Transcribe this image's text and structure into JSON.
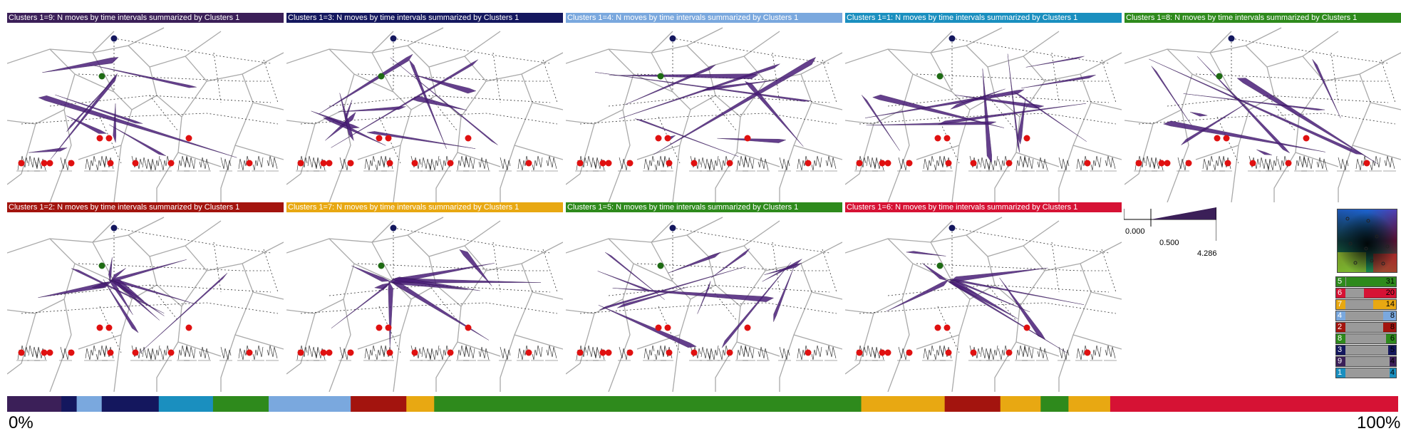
{
  "panels": [
    {
      "title": "Clusters 1=9: N moves by time intervals summarized by Clusters 1",
      "color": "#3b1f58",
      "text_color": "#ffffff"
    },
    {
      "title": "Clusters 1=3: N moves by time intervals summarized by Clusters 1",
      "color": "#14175e",
      "text_color": "#ffffff"
    },
    {
      "title": "Clusters 1=4: N moves by time intervals summarized by Clusters 1",
      "color": "#7aa8de",
      "text_color": "#ffffff"
    },
    {
      "title": "Clusters 1=1: N moves by time intervals summarized by Clusters 1",
      "color": "#1a8fbf",
      "text_color": "#ffffff"
    },
    {
      "title": "Clusters 1=8: N moves by time intervals summarized by Clusters 1",
      "color": "#2e8a1c",
      "text_color": "#ffffff"
    },
    {
      "title": "Clusters 1=2: N moves by time intervals summarized by Clusters 1",
      "color": "#a3140e",
      "text_color": "#ffffff"
    },
    {
      "title": "Clusters 1=7: N moves by time intervals summarized by Clusters 1",
      "color": "#e8a812",
      "text_color": "#ffffff"
    },
    {
      "title": "Clusters 1=5: N moves by time intervals summarized by Clusters 1",
      "color": "#2e8a1c",
      "text_color": "#ffffff"
    },
    {
      "title": "Clusters 1=6: N moves by time intervals summarized by Clusters 1",
      "color": "#d61234",
      "text_color": "#ffffff"
    }
  ],
  "scale_legend": {
    "min": "0.000",
    "mid": "0.500",
    "max": "4.286",
    "color": "#3b1f58"
  },
  "cluster_counts": [
    {
      "id": "5",
      "count": "31",
      "color": "#2e8a1c"
    },
    {
      "id": "6",
      "count": "20",
      "color": "#d61234"
    },
    {
      "id": "7",
      "count": "14",
      "color": "#e8a812"
    },
    {
      "id": "4",
      "count": "8",
      "color": "#7aa8de"
    },
    {
      "id": "2",
      "count": "8",
      "color": "#a3140e"
    },
    {
      "id": "8",
      "count": "6",
      "color": "#2e8a1c"
    },
    {
      "id": "3",
      "count": "5",
      "color": "#14175e"
    },
    {
      "id": "9",
      "count": "4",
      "color": "#3b1f58"
    },
    {
      "id": "1",
      "count": "4",
      "color": "#1a8fbf"
    }
  ],
  "timeline": {
    "start_label": "0%",
    "end_label": "100%",
    "segments": [
      {
        "color": "#3b1f58",
        "share": 0.039
      },
      {
        "color": "#14175e",
        "share": 0.011
      },
      {
        "color": "#7aa8de",
        "share": 0.018
      },
      {
        "color": "#14175e",
        "share": 0.041
      },
      {
        "color": "#1a8fbf",
        "share": 0.039
      },
      {
        "color": "#2e8a1c",
        "share": 0.04
      },
      {
        "color": "#7aa8de",
        "share": 0.059
      },
      {
        "color": "#a3140e",
        "share": 0.04
      },
      {
        "color": "#e8a812",
        "share": 0.02
      },
      {
        "color": "#2e8a1c",
        "share": 0.307
      },
      {
        "color": "#e8a812",
        "share": 0.06
      },
      {
        "color": "#a3140e",
        "share": 0.04
      },
      {
        "color": "#e8a812",
        "share": 0.029
      },
      {
        "color": "#2e8a1c",
        "share": 0.02
      },
      {
        "color": "#e8a812",
        "share": 0.03
      },
      {
        "color": "#d61234",
        "share": 0.207
      }
    ]
  }
}
